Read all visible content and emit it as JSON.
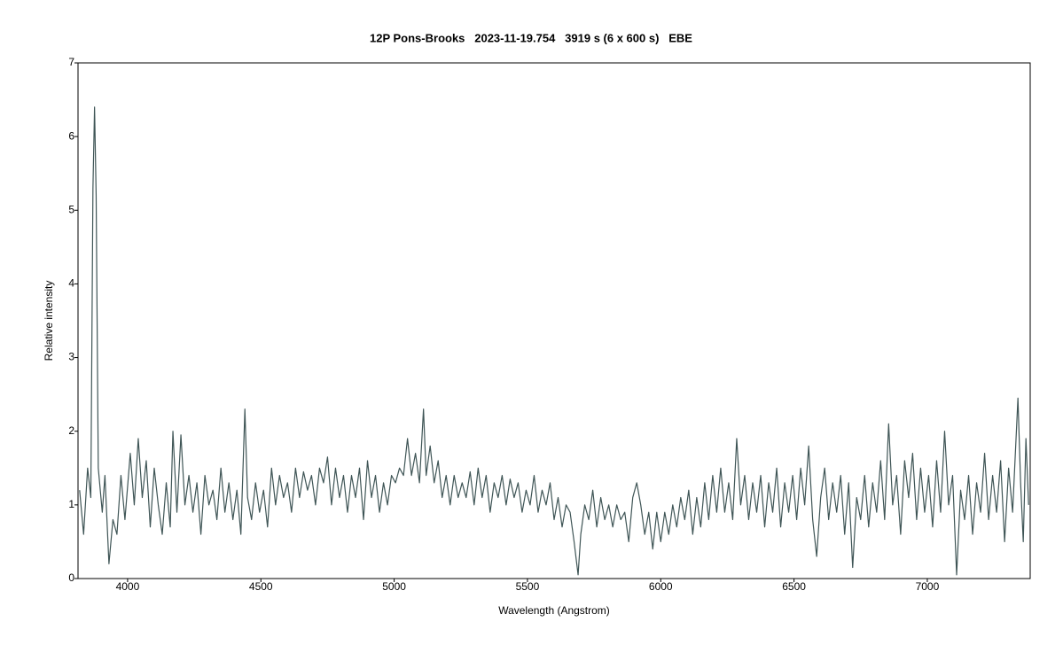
{
  "chart_data": {
    "type": "line",
    "title": "12P Pons-Brooks   2023-11-19.754   3919 s (6 x 600 s)   EBE",
    "xlabel": "Wavelength (Angstrom)",
    "ylabel": "Relative intensity",
    "xlim": [
      3814,
      7386
    ],
    "ylim": [
      0,
      7
    ],
    "xticks": [
      4000,
      4500,
      5000,
      5500,
      6000,
      6500,
      7000
    ],
    "yticks": [
      0,
      1,
      2,
      3,
      4,
      5,
      6,
      7
    ],
    "series": [
      {
        "color": "#3f5556",
        "x": [
          3820,
          3835,
          3850,
          3862,
          3870,
          3876,
          3882,
          3890,
          3905,
          3915,
          3930,
          3945,
          3960,
          3975,
          3990,
          4010,
          4025,
          4040,
          4055,
          4070,
          4085,
          4100,
          4115,
          4130,
          4145,
          4160,
          4170,
          4185,
          4200,
          4215,
          4230,
          4245,
          4260,
          4275,
          4290,
          4305,
          4320,
          4335,
          4350,
          4365,
          4380,
          4395,
          4410,
          4425,
          4440,
          4450,
          4465,
          4480,
          4495,
          4510,
          4525,
          4540,
          4555,
          4570,
          4585,
          4600,
          4615,
          4630,
          4645,
          4660,
          4675,
          4690,
          4705,
          4720,
          4735,
          4750,
          4765,
          4780,
          4795,
          4810,
          4825,
          4840,
          4855,
          4870,
          4885,
          4900,
          4915,
          4930,
          4945,
          4960,
          4975,
          4990,
          5005,
          5020,
          5035,
          5050,
          5065,
          5080,
          5095,
          5110,
          5120,
          5135,
          5150,
          5165,
          5180,
          5195,
          5210,
          5225,
          5240,
          5255,
          5270,
          5285,
          5300,
          5315,
          5330,
          5345,
          5360,
          5375,
          5390,
          5405,
          5420,
          5435,
          5450,
          5465,
          5480,
          5495,
          5510,
          5525,
          5540,
          5555,
          5570,
          5585,
          5600,
          5615,
          5630,
          5645,
          5660,
          5675,
          5690,
          5700,
          5715,
          5730,
          5745,
          5760,
          5775,
          5790,
          5805,
          5820,
          5835,
          5850,
          5865,
          5880,
          5895,
          5910,
          5925,
          5940,
          5955,
          5970,
          5985,
          6000,
          6015,
          6030,
          6045,
          6060,
          6075,
          6090,
          6105,
          6120,
          6135,
          6150,
          6165,
          6180,
          6195,
          6210,
          6225,
          6240,
          6255,
          6270,
          6285,
          6300,
          6315,
          6330,
          6345,
          6360,
          6375,
          6390,
          6405,
          6420,
          6435,
          6450,
          6465,
          6480,
          6495,
          6510,
          6525,
          6540,
          6555,
          6570,
          6585,
          6600,
          6615,
          6630,
          6645,
          6660,
          6675,
          6690,
          6705,
          6720,
          6735,
          6750,
          6765,
          6780,
          6795,
          6810,
          6825,
          6840,
          6855,
          6870,
          6885,
          6900,
          6915,
          6930,
          6945,
          6960,
          6975,
          6990,
          7005,
          7020,
          7035,
          7050,
          7065,
          7080,
          7095,
          7110,
          7125,
          7140,
          7155,
          7170,
          7185,
          7200,
          7215,
          7230,
          7245,
          7260,
          7275,
          7290,
          7305,
          7320,
          7340,
          7350,
          7360,
          7370,
          7380
        ],
        "values": [
          1.2,
          0.6,
          1.5,
          1.1,
          5.3,
          6.4,
          5.2,
          1.5,
          0.9,
          1.4,
          0.2,
          0.8,
          0.6,
          1.4,
          0.8,
          1.7,
          1.0,
          1.9,
          1.1,
          1.6,
          0.7,
          1.5,
          1.0,
          0.6,
          1.3,
          0.7,
          2.0,
          0.9,
          1.95,
          1.0,
          1.4,
          0.9,
          1.3,
          0.6,
          1.4,
          1.0,
          1.2,
          0.8,
          1.5,
          0.9,
          1.3,
          0.8,
          1.2,
          0.6,
          2.3,
          1.1,
          0.8,
          1.3,
          0.9,
          1.2,
          0.7,
          1.5,
          1.0,
          1.4,
          1.1,
          1.3,
          0.9,
          1.5,
          1.1,
          1.45,
          1.2,
          1.4,
          1.0,
          1.5,
          1.3,
          1.65,
          1.0,
          1.5,
          1.1,
          1.4,
          0.9,
          1.4,
          1.1,
          1.5,
          0.8,
          1.6,
          1.1,
          1.4,
          0.9,
          1.3,
          1.0,
          1.4,
          1.3,
          1.5,
          1.4,
          1.9,
          1.4,
          1.7,
          1.3,
          2.3,
          1.4,
          1.8,
          1.3,
          1.6,
          1.1,
          1.4,
          1.0,
          1.4,
          1.1,
          1.3,
          1.1,
          1.45,
          1.0,
          1.5,
          1.1,
          1.4,
          0.9,
          1.3,
          1.1,
          1.4,
          1.0,
          1.35,
          1.1,
          1.3,
          0.9,
          1.2,
          1.0,
          1.4,
          0.9,
          1.2,
          1.0,
          1.3,
          0.8,
          1.1,
          0.7,
          1.0,
          0.9,
          0.5,
          0.05,
          0.6,
          1.0,
          0.8,
          1.2,
          0.7,
          1.1,
          0.8,
          1.0,
          0.7,
          1.0,
          0.8,
          0.9,
          0.5,
          1.1,
          1.3,
          1.0,
          0.6,
          0.9,
          0.4,
          0.9,
          0.5,
          0.9,
          0.6,
          1.0,
          0.7,
          1.1,
          0.8,
          1.2,
          0.6,
          1.1,
          0.7,
          1.3,
          0.8,
          1.4,
          0.9,
          1.5,
          0.9,
          1.3,
          0.8,
          1.9,
          1.0,
          1.4,
          0.8,
          1.3,
          0.9,
          1.4,
          0.7,
          1.3,
          0.9,
          1.5,
          0.7,
          1.3,
          0.9,
          1.4,
          0.8,
          1.5,
          1.0,
          1.8,
          0.8,
          0.3,
          1.1,
          1.5,
          0.8,
          1.3,
          0.9,
          1.4,
          0.6,
          1.3,
          0.15,
          1.1,
          0.8,
          1.4,
          0.7,
          1.3,
          0.9,
          1.6,
          0.8,
          2.1,
          1.0,
          1.4,
          0.6,
          1.6,
          1.1,
          1.7,
          0.8,
          1.5,
          0.9,
          1.4,
          0.7,
          1.6,
          0.9,
          2.0,
          1.0,
          1.4,
          0.05,
          1.2,
          0.8,
          1.4,
          0.6,
          1.3,
          0.9,
          1.7,
          0.8,
          1.4,
          0.9,
          1.6,
          0.5,
          1.5,
          0.9,
          2.45,
          1.3,
          0.5,
          1.9,
          1.0
        ]
      }
    ]
  }
}
